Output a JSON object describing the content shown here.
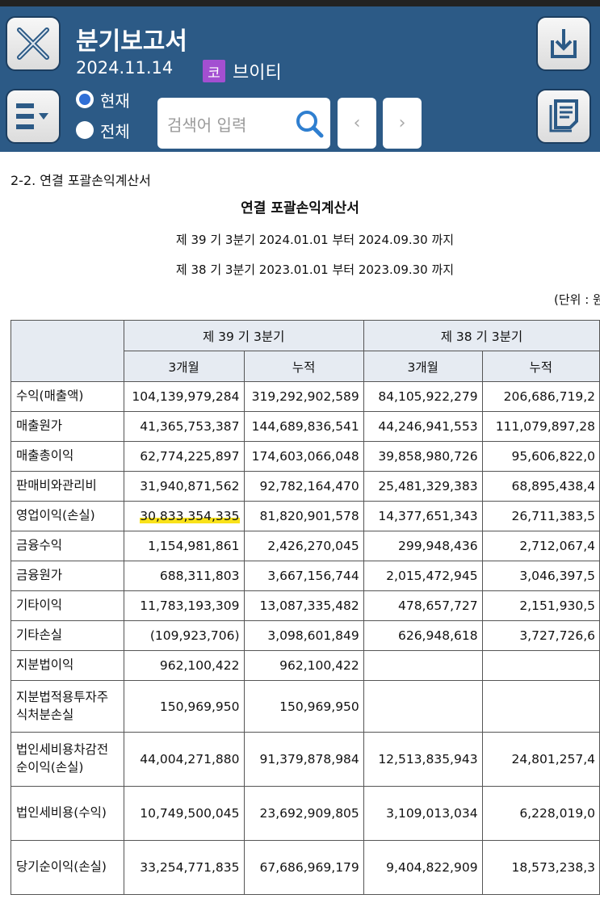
{
  "header": {
    "title": "분기보고서",
    "date": "2024.11.14",
    "market_badge": "코",
    "company": "브이티",
    "radio_current": "현재",
    "radio_all": "전체",
    "search_placeholder": "검색어 입력",
    "prev": "‹",
    "next": "›",
    "color": "#2c5a86"
  },
  "doc": {
    "section": "2-2. 연결 포괄손익계산서",
    "title": "연결 포괄손익계산서",
    "period_current": "제 39 기 3분기 2024.01.01 부터 2024.09.30 까지",
    "period_prior": "제 38 기 3분기 2023.01.01 부터 2023.09.30 까지",
    "unit": "(단위 : 원)"
  },
  "table": {
    "period_headers": [
      "제 39 기 3분기",
      "제 38 기 3분기"
    ],
    "sub_headers": [
      "3개월",
      "누적",
      "3개월",
      "누적"
    ],
    "rows": [
      {
        "label": "수익(매출액)",
        "values": [
          "104,139,979,284",
          "319,292,902,589",
          "84,105,922,279",
          "206,686,719,2"
        ]
      },
      {
        "label": "매출원가",
        "values": [
          "41,365,753,387",
          "144,689,836,541",
          "44,246,941,553",
          "111,079,897,28"
        ]
      },
      {
        "label": "매출총이익",
        "values": [
          "62,774,225,897",
          "174,603,066,048",
          "39,858,980,726",
          "95,606,822,0"
        ]
      },
      {
        "label": "판매비와관리비",
        "values": [
          "31,940,871,562",
          "92,782,164,470",
          "25,481,329,383",
          "68,895,438,4"
        ]
      },
      {
        "label": "영업이익(손실)",
        "values": [
          "30,833,354,335",
          "81,820,901,578",
          "14,377,651,343",
          "26,711,383,5"
        ]
      },
      {
        "label": "금융수익",
        "values": [
          "1,154,981,861",
          "2,426,270,045",
          "299,948,436",
          "2,712,067,4"
        ]
      },
      {
        "label": "금융원가",
        "values": [
          "688,311,803",
          "3,667,156,744",
          "2,015,472,945",
          "3,046,397,5"
        ]
      },
      {
        "label": "기타이익",
        "values": [
          "11,783,193,309",
          "13,087,335,482",
          "478,657,727",
          "2,151,930,5"
        ]
      },
      {
        "label": "기타손실",
        "values": [
          "(109,923,706)",
          "3,098,601,849",
          "626,948,618",
          "3,727,726,6"
        ]
      },
      {
        "label": "지분법이익",
        "values": [
          "962,100,422",
          "962,100,422",
          "",
          ""
        ]
      },
      {
        "label": "지분법적용투자주식처분손실",
        "values": [
          "150,969,950",
          "150,969,950",
          "",
          ""
        ]
      },
      {
        "label": "법인세비용차감전순이익(손실)",
        "values": [
          "44,004,271,880",
          "91,379,878,984",
          "12,513,835,943",
          "24,801,257,4"
        ]
      },
      {
        "label": "법인세비용(수익)",
        "values": [
          "10,749,500,045",
          "23,692,909,805",
          "3,109,013,034",
          "6,228,019,0"
        ]
      },
      {
        "label": "당기순이익(손실)",
        "values": [
          "33,254,771,835",
          "67,686,969,179",
          "9,404,822,909",
          "18,573,238,3"
        ]
      }
    ]
  }
}
